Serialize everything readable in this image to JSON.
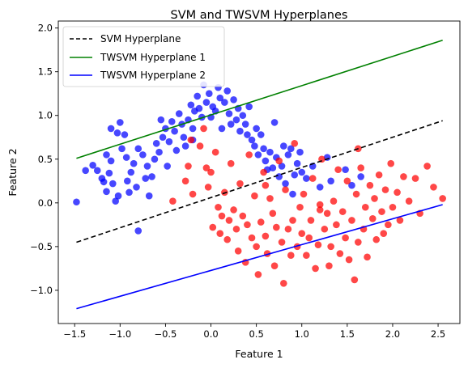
{
  "chart_data": {
    "type": "scatter",
    "title": "SVM and TWSVM Hyperplanes",
    "xlabel": "Feature 1",
    "ylabel": "Feature 2",
    "xlim": [
      -1.68,
      2.74
    ],
    "ylim": [
      -1.38,
      2.08
    ],
    "xticks": [
      -1.5,
      -1.0,
      -0.5,
      0.0,
      0.5,
      1.0,
      1.5,
      2.0,
      2.5
    ],
    "xtick_labels": [
      "−1.5",
      "−1.0",
      "−0.5",
      "0.0",
      "0.5",
      "1.0",
      "1.5",
      "2.0",
      "2.5"
    ],
    "yticks": [
      -1.0,
      -0.5,
      0.0,
      0.5,
      1.0,
      1.5,
      2.0
    ],
    "ytick_labels": [
      "−1.0",
      "−0.5",
      "0.0",
      "0.5",
      "1.0",
      "1.5",
      "2.0"
    ],
    "grid": false,
    "legend_position": "upper-left",
    "lines": [
      {
        "name": "SVM Hyperplane",
        "color": "#000000",
        "dashed": true,
        "x": [
          -1.48,
          2.55
        ],
        "y": [
          -0.45,
          0.94
        ]
      },
      {
        "name": "TWSVM Hyperplane 1",
        "color": "#008000",
        "dashed": false,
        "x": [
          -1.48,
          2.55
        ],
        "y": [
          0.51,
          1.86
        ]
      },
      {
        "name": "TWSVM Hyperplane 2",
        "color": "#0000ff",
        "dashed": false,
        "x": [
          -1.48,
          2.55
        ],
        "y": [
          -1.21,
          -0.02
        ]
      }
    ],
    "series": [
      {
        "color": "#0000ff",
        "points": [
          [
            -1.48,
            0.01
          ],
          [
            -1.38,
            0.37
          ],
          [
            -1.3,
            0.43
          ],
          [
            -1.25,
            0.37
          ],
          [
            -1.15,
            0.55
          ],
          [
            -1.18,
            0.24
          ],
          [
            -1.15,
            0.13
          ],
          [
            -1.12,
            0.34
          ],
          [
            -1.1,
            0.48
          ],
          [
            -1.08,
            0.22
          ],
          [
            -1.05,
            0.02
          ],
          [
            -1.02,
            0.08
          ],
          [
            -1.1,
            0.85
          ],
          [
            -1.03,
            0.8
          ],
          [
            -1.0,
            0.92
          ],
          [
            -0.98,
            0.62
          ],
          [
            -0.93,
            0.52
          ],
          [
            -0.92,
            0.25
          ],
          [
            -0.9,
            0.12
          ],
          [
            -0.88,
            0.35
          ],
          [
            -0.85,
            0.45
          ],
          [
            -0.82,
            0.18
          ],
          [
            -0.8,
            0.62
          ],
          [
            -0.75,
            0.55
          ],
          [
            -0.72,
            0.28
          ],
          [
            -0.7,
            0.42
          ],
          [
            -0.68,
            0.08
          ],
          [
            -0.65,
            0.3
          ],
          [
            -0.62,
            0.5
          ],
          [
            -0.6,
            0.68
          ],
          [
            -0.57,
            0.58
          ],
          [
            -0.53,
            0.75
          ],
          [
            -0.5,
            0.85
          ],
          [
            -0.48,
            0.42
          ],
          [
            -0.46,
            0.7
          ],
          [
            -0.43,
            0.93
          ],
          [
            -0.4,
            0.82
          ],
          [
            -0.38,
            0.6
          ],
          [
            -0.35,
            1.02
          ],
          [
            -0.32,
            0.9
          ],
          [
            -0.3,
            0.75
          ],
          [
            -0.28,
            0.65
          ],
          [
            -0.25,
            0.95
          ],
          [
            -0.22,
            1.12
          ],
          [
            -0.2,
            0.85
          ],
          [
            -0.18,
            1.05
          ],
          [
            -0.15,
            1.22
          ],
          [
            -0.13,
            1.08
          ],
          [
            -0.1,
            0.98
          ],
          [
            -0.08,
            1.35
          ],
          [
            -0.05,
            1.15
          ],
          [
            -0.02,
            1.25
          ],
          [
            0.0,
            0.98
          ],
          [
            0.02,
            1.1
          ],
          [
            0.05,
            1.05
          ],
          [
            0.08,
            1.32
          ],
          [
            0.1,
            1.2
          ],
          [
            0.12,
            0.85
          ],
          [
            0.15,
            1.15
          ],
          [
            0.18,
            1.28
          ],
          [
            0.2,
            1.02
          ],
          [
            0.22,
            0.9
          ],
          [
            0.25,
            1.18
          ],
          [
            0.28,
            0.95
          ],
          [
            0.3,
            1.08
          ],
          [
            0.32,
            0.82
          ],
          [
            0.35,
            1.0
          ],
          [
            0.38,
            0.9
          ],
          [
            0.4,
            0.78
          ],
          [
            0.42,
            1.1
          ],
          [
            0.45,
            0.72
          ],
          [
            0.48,
            0.65
          ],
          [
            0.5,
            0.85
          ],
          [
            0.52,
            0.55
          ],
          [
            0.55,
            0.78
          ],
          [
            0.58,
            0.62
          ],
          [
            0.6,
            0.48
          ],
          [
            0.62,
            0.38
          ],
          [
            0.65,
            0.58
          ],
          [
            0.68,
            0.4
          ],
          [
            0.7,
            0.92
          ],
          [
            0.72,
            0.52
          ],
          [
            0.75,
            0.3
          ],
          [
            0.78,
            0.42
          ],
          [
            0.8,
            0.65
          ],
          [
            0.82,
            0.22
          ],
          [
            0.85,
            0.55
          ],
          [
            0.88,
            0.62
          ],
          [
            0.9,
            0.1
          ],
          [
            0.92,
            0.32
          ],
          [
            0.95,
            0.45
          ],
          [
            0.98,
            0.58
          ],
          [
            1.0,
            0.35
          ],
          [
            1.05,
            0.28
          ],
          [
            1.12,
            0.42
          ],
          [
            1.2,
            0.18
          ],
          [
            1.28,
            0.52
          ],
          [
            1.32,
            0.25
          ],
          [
            1.48,
            0.38
          ],
          [
            1.55,
            0.2
          ],
          [
            1.65,
            0.3
          ],
          [
            -0.8,
            -0.32
          ],
          [
            -1.2,
            0.28
          ],
          [
            -0.95,
            0.78
          ],
          [
            -0.55,
            0.95
          ],
          [
            -0.2,
            0.72
          ]
        ]
      },
      {
        "color": "#ff0000",
        "points": [
          [
            -0.42,
            0.02
          ],
          [
            -0.28,
            0.25
          ],
          [
            -0.25,
            0.42
          ],
          [
            -0.22,
            0.72
          ],
          [
            -0.2,
            0.1
          ],
          [
            -0.12,
            0.65
          ],
          [
            -0.08,
            0.85
          ],
          [
            -0.05,
            0.4
          ],
          [
            -0.03,
            0.18
          ],
          [
            0.0,
            0.35
          ],
          [
            0.02,
            -0.28
          ],
          [
            0.05,
            0.58
          ],
          [
            0.08,
            -0.05
          ],
          [
            0.1,
            -0.35
          ],
          [
            0.12,
            -0.15
          ],
          [
            0.15,
            0.12
          ],
          [
            0.18,
            -0.42
          ],
          [
            0.2,
            -0.2
          ],
          [
            0.22,
            0.45
          ],
          [
            0.25,
            -0.08
          ],
          [
            0.28,
            -0.3
          ],
          [
            0.3,
            -0.55
          ],
          [
            0.32,
            0.22
          ],
          [
            0.35,
            -0.15
          ],
          [
            0.38,
            -0.68
          ],
          [
            0.4,
            -0.25
          ],
          [
            0.42,
            0.55
          ],
          [
            0.45,
            -0.4
          ],
          [
            0.48,
            0.08
          ],
          [
            0.5,
            -0.5
          ],
          [
            0.52,
            -0.82
          ],
          [
            0.55,
            -0.22
          ],
          [
            0.58,
            0.35
          ],
          [
            0.6,
            -0.38
          ],
          [
            0.62,
            -0.58
          ],
          [
            0.65,
            0.05
          ],
          [
            0.68,
            -0.12
          ],
          [
            0.7,
            -0.72
          ],
          [
            0.72,
            -0.28
          ],
          [
            0.75,
            0.48
          ],
          [
            0.78,
            -0.45
          ],
          [
            0.8,
            -0.92
          ],
          [
            0.82,
            0.15
          ],
          [
            0.85,
            -0.3
          ],
          [
            0.88,
            -0.6
          ],
          [
            0.9,
            -0.2
          ],
          [
            0.92,
            0.68
          ],
          [
            0.95,
            -0.5
          ],
          [
            0.98,
            -0.05
          ],
          [
            1.0,
            -0.35
          ],
          [
            1.02,
            0.1
          ],
          [
            1.05,
            -0.6
          ],
          [
            1.08,
            -0.4
          ],
          [
            1.1,
            -0.2
          ],
          [
            1.12,
            0.28
          ],
          [
            1.15,
            -0.75
          ],
          [
            1.18,
            -0.48
          ],
          [
            1.2,
            -0.08
          ],
          [
            1.22,
            0.5
          ],
          [
            1.25,
            -0.3
          ],
          [
            1.28,
            -0.12
          ],
          [
            1.3,
            -0.72
          ],
          [
            1.32,
            -0.5
          ],
          [
            1.35,
            0.02
          ],
          [
            1.38,
            -0.25
          ],
          [
            1.4,
            0.38
          ],
          [
            1.42,
            -0.58
          ],
          [
            1.45,
            -0.1
          ],
          [
            1.48,
            -0.4
          ],
          [
            1.5,
            0.25
          ],
          [
            1.52,
            -0.65
          ],
          [
            1.55,
            -0.2
          ],
          [
            1.58,
            -0.88
          ],
          [
            1.6,
            0.1
          ],
          [
            1.62,
            -0.45
          ],
          [
            1.65,
            0.4
          ],
          [
            1.68,
            -0.3
          ],
          [
            1.7,
            -0.05
          ],
          [
            1.72,
            -0.62
          ],
          [
            1.75,
            0.2
          ],
          [
            1.78,
            -0.18
          ],
          [
            1.8,
            0.05
          ],
          [
            1.82,
            -0.42
          ],
          [
            1.85,
            0.32
          ],
          [
            1.88,
            -0.1
          ],
          [
            1.9,
            -0.35
          ],
          [
            1.92,
            0.15
          ],
          [
            1.95,
            -0.25
          ],
          [
            1.98,
            0.45
          ],
          [
            2.0,
            -0.05
          ],
          [
            2.05,
            0.12
          ],
          [
            2.08,
            -0.2
          ],
          [
            2.12,
            0.3
          ],
          [
            2.18,
            0.02
          ],
          [
            2.25,
            0.28
          ],
          [
            2.3,
            -0.12
          ],
          [
            2.38,
            0.42
          ],
          [
            2.45,
            0.18
          ],
          [
            2.55,
            0.05
          ],
          [
            1.2,
            -0.02
          ],
          [
            0.6,
            0.2
          ],
          [
            1.62,
            0.62
          ]
        ]
      }
    ]
  }
}
